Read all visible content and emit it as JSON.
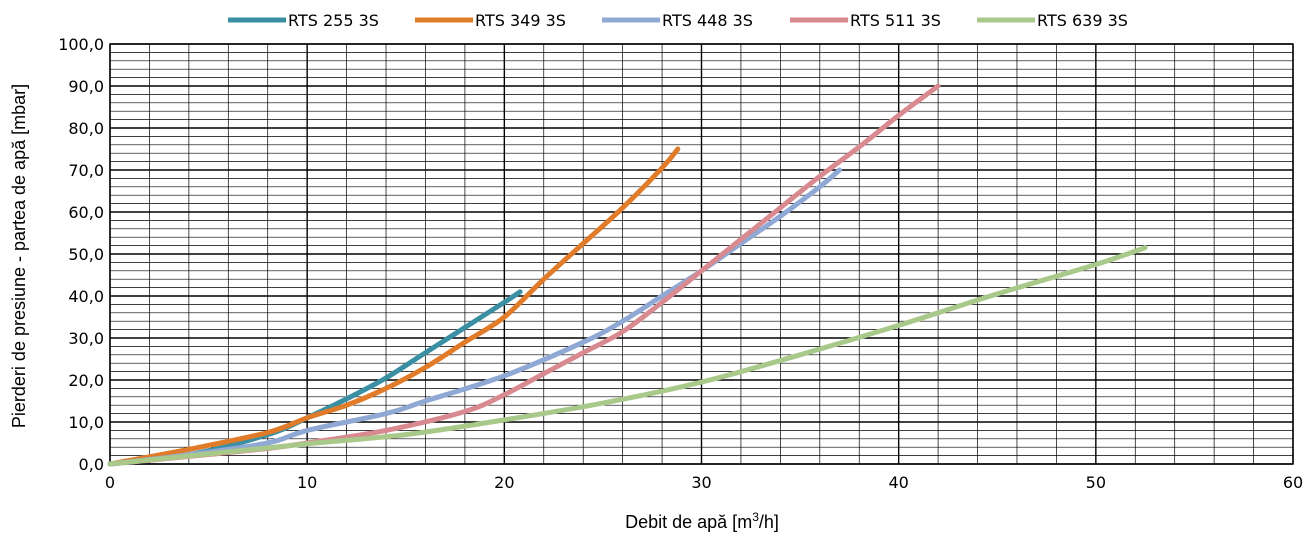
{
  "chart_data": {
    "type": "line",
    "title": "",
    "xlabel": "Debit de apă [m",
    "xlabel_sup": "3",
    "xlabel_suffix": "/h]",
    "ylabel": "Pierderi de presiune - partea de apă [mbar]",
    "xlim": [
      0,
      60
    ],
    "ylim": [
      0,
      100
    ],
    "x_ticks": [
      0,
      10,
      20,
      30,
      40,
      50,
      60
    ],
    "x_tick_labels": [
      "0",
      "10",
      "20",
      "30",
      "40",
      "50",
      "60"
    ],
    "y_ticks": [
      0,
      10,
      20,
      30,
      40,
      50,
      60,
      70,
      80,
      90,
      100
    ],
    "y_tick_labels": [
      "0,0",
      "10,0",
      "20,0",
      "30,0",
      "40,0",
      "50,0",
      "60,0",
      "70,0",
      "80,0",
      "90,0",
      "100,0"
    ],
    "x_minor_step": 2,
    "y_minor_step": 2,
    "grid": true,
    "legend_position": "top",
    "series": [
      {
        "name": "RTS 255 3S",
        "color": "#3a8fa3",
        "points": [
          [
            0,
            0
          ],
          [
            4,
            2.2
          ],
          [
            8,
            7
          ],
          [
            10,
            11
          ],
          [
            12,
            15.5
          ],
          [
            14,
            20.5
          ],
          [
            16,
            26.5
          ],
          [
            18,
            32.5
          ],
          [
            20,
            38.5
          ],
          [
            20.8,
            41
          ]
        ]
      },
      {
        "name": "RTS 349 3S",
        "color": "#e07b2a",
        "points": [
          [
            0,
            0
          ],
          [
            4,
            3.5
          ],
          [
            8,
            7.5
          ],
          [
            10,
            11
          ],
          [
            12,
            14
          ],
          [
            14,
            18
          ],
          [
            16,
            23
          ],
          [
            18,
            29
          ],
          [
            20,
            35
          ],
          [
            22,
            44
          ],
          [
            24,
            52.5
          ],
          [
            26,
            61
          ],
          [
            28,
            70.5
          ],
          [
            28.8,
            75
          ]
        ]
      },
      {
        "name": "RTS 448 3S",
        "color": "#8fa8d4",
        "points": [
          [
            0,
            0
          ],
          [
            4,
            2.2
          ],
          [
            8,
            5
          ],
          [
            10,
            8
          ],
          [
            14,
            12
          ],
          [
            16,
            15
          ],
          [
            20,
            21
          ],
          [
            24,
            29
          ],
          [
            26,
            34
          ],
          [
            28,
            40
          ],
          [
            30,
            46
          ],
          [
            32,
            52.5
          ],
          [
            34,
            59
          ],
          [
            36,
            66
          ],
          [
            37,
            70
          ]
        ]
      },
      {
        "name": "RTS 511 3S",
        "color": "#d98a90",
        "points": [
          [
            0,
            0
          ],
          [
            4,
            1.8
          ],
          [
            8,
            3.7
          ],
          [
            10,
            5
          ],
          [
            14,
            8
          ],
          [
            18,
            12.5
          ],
          [
            20,
            16.5
          ],
          [
            22,
            21.5
          ],
          [
            24,
            26.5
          ],
          [
            26,
            31.5
          ],
          [
            28,
            38.5
          ],
          [
            30,
            46
          ],
          [
            32,
            53.5
          ],
          [
            34,
            61
          ],
          [
            36,
            68.5
          ],
          [
            38,
            75.5
          ],
          [
            40,
            83
          ],
          [
            42,
            90
          ]
        ]
      },
      {
        "name": "RTS 639 3S",
        "color": "#a9c98a",
        "points": [
          [
            0,
            0
          ],
          [
            5,
            2.4
          ],
          [
            10,
            4.8
          ],
          [
            15,
            7
          ],
          [
            20,
            10.5
          ],
          [
            25,
            14.5
          ],
          [
            30,
            19.5
          ],
          [
            35,
            26
          ],
          [
            40,
            33
          ],
          [
            45,
            40.5
          ],
          [
            50,
            47.5
          ],
          [
            52.5,
            51.5
          ]
        ]
      }
    ]
  }
}
